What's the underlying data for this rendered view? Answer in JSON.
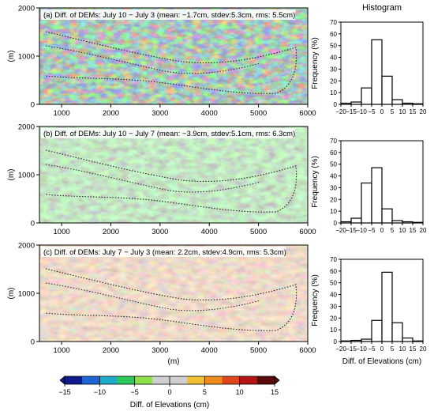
{
  "chart_data": [
    {
      "type": "heatmap",
      "id": "a",
      "title": "(a) Diff. of DEMs: July 10 − July 3 (mean: −1.7cm, stdev:5.3cm, rms: 5.5cm)",
      "ylabel": "(m)",
      "xlabel": "",
      "xlim": [
        550,
        6000
      ],
      "ylim": [
        0,
        2000
      ],
      "xticks": [
        "1000",
        "2000",
        "3000",
        "4000",
        "5000",
        "6000"
      ],
      "yticks": [
        "0",
        "1000",
        "2000"
      ],
      "tone": "mixed"
    },
    {
      "type": "heatmap",
      "id": "b",
      "title": "(b) Diff. of DEMs: July 10 − July 7 (mean: −3.9cm, stdev:5.1cm, rms: 6.3cm)",
      "ylabel": "(m)",
      "xlabel": "",
      "xlim": [
        550,
        6000
      ],
      "ylim": [
        0,
        2000
      ],
      "xticks": [
        "1000",
        "2000",
        "3000",
        "4000",
        "5000",
        "6000"
      ],
      "yticks": [
        "0",
        "1000",
        "2000"
      ],
      "tone": "green"
    },
    {
      "type": "heatmap",
      "id": "c",
      "title": "(c) Diff. of DEMs: July 7 − July 3 (mean: 2.2cm, stdev:4.9cm, rms: 5.3cm)",
      "ylabel": "(m)",
      "xlabel": "(m)",
      "xlim": [
        550,
        6000
      ],
      "ylim": [
        0,
        2000
      ],
      "xticks": [
        "1000",
        "2000",
        "3000",
        "4000",
        "5000",
        "6000"
      ],
      "yticks": [
        "0",
        "1000",
        "2000"
      ],
      "tone": "orange"
    },
    {
      "type": "bar",
      "id": "hist-a",
      "title": "Histogram",
      "ylabel": "Frequency (%)",
      "xlabel": "",
      "categories": [
        -17.5,
        -12.5,
        -7.5,
        -2.5,
        2.5,
        7.5,
        12.5,
        17.5
      ],
      "values": [
        1,
        2,
        14,
        55,
        24,
        4,
        1,
        0.5
      ],
      "ylim": [
        0,
        70
      ],
      "xlim": [
        -20,
        20
      ],
      "xticks": [
        "−20",
        "−15",
        "−10",
        "−5",
        "0",
        "5",
        "10",
        "15",
        "20"
      ],
      "yticks": [
        "0",
        "10",
        "20",
        "30",
        "40",
        "50",
        "60",
        "70"
      ]
    },
    {
      "type": "bar",
      "id": "hist-b",
      "title": "",
      "ylabel": "Frequency (%)",
      "xlabel": "",
      "categories": [
        -17.5,
        -12.5,
        -7.5,
        -2.5,
        2.5,
        7.5,
        12.5,
        17.5
      ],
      "values": [
        1,
        4,
        34,
        47,
        12,
        2,
        1,
        0.5
      ],
      "ylim": [
        0,
        70
      ],
      "xlim": [
        -20,
        20
      ],
      "xticks": [
        "−20",
        "−15",
        "−10",
        "−5",
        "0",
        "5",
        "10",
        "15",
        "20"
      ],
      "yticks": [
        "0",
        "10",
        "20",
        "30",
        "40",
        "50",
        "60",
        "70"
      ]
    },
    {
      "type": "bar",
      "id": "hist-c",
      "title": "",
      "ylabel": "Frequency (%)",
      "xlabel": "Diff.  of Elevations (cm)",
      "categories": [
        -17.5,
        -12.5,
        -7.5,
        -2.5,
        2.5,
        7.5,
        12.5,
        17.5
      ],
      "values": [
        0.5,
        1,
        2,
        18,
        59,
        16,
        3,
        0.5
      ],
      "ylim": [
        0,
        70
      ],
      "xlim": [
        -20,
        20
      ],
      "xticks": [
        "−20",
        "−15",
        "−10",
        "−5",
        "0",
        "5",
        "10",
        "15",
        "20"
      ],
      "yticks": [
        "0",
        "10",
        "20",
        "30",
        "40",
        "50",
        "60",
        "70"
      ]
    }
  ],
  "colorbar": {
    "label": "Diff. of Elevations (cm)",
    "range": [
      -15,
      15
    ],
    "ticks": [
      "−15",
      "−10",
      "−5",
      "0",
      "5",
      "10",
      "15"
    ],
    "colors": [
      "#101a8c",
      "#1e64d2",
      "#1eaac8",
      "#2ec85a",
      "#8ee04a",
      "#cfcfcf",
      "#cfcfcf",
      "#f0c030",
      "#f08c1e",
      "#e0461e",
      "#b41414",
      "#5a0a0a"
    ]
  }
}
